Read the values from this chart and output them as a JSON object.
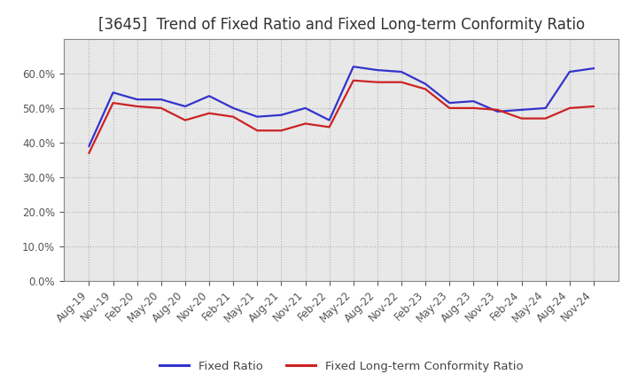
{
  "title": "[3645]  Trend of Fixed Ratio and Fixed Long-term Conformity Ratio",
  "x_labels": [
    "Aug-19",
    "Nov-19",
    "Feb-20",
    "May-20",
    "Aug-20",
    "Nov-20",
    "Feb-21",
    "May-21",
    "Aug-21",
    "Nov-21",
    "Feb-22",
    "May-22",
    "Aug-22",
    "Nov-22",
    "Feb-23",
    "May-23",
    "Aug-23",
    "Nov-23",
    "Feb-24",
    "May-24",
    "Aug-24",
    "Nov-24"
  ],
  "fixed_ratio": [
    39.0,
    54.5,
    52.5,
    52.5,
    50.5,
    53.5,
    50.0,
    47.5,
    48.0,
    50.0,
    46.5,
    62.0,
    61.0,
    60.5,
    57.0,
    51.5,
    52.0,
    49.0,
    49.5,
    50.0,
    60.5,
    61.5
  ],
  "fixed_lt_ratio": [
    37.0,
    51.5,
    50.5,
    50.0,
    46.5,
    48.5,
    47.5,
    43.5,
    43.5,
    45.5,
    44.5,
    58.0,
    57.5,
    57.5,
    55.5,
    50.0,
    50.0,
    49.5,
    47.0,
    47.0,
    50.0,
    50.5
  ],
  "ylim": [
    0,
    70
  ],
  "yticks": [
    0.0,
    10.0,
    20.0,
    30.0,
    40.0,
    50.0,
    60.0
  ],
  "fixed_ratio_color": "#3333CC",
  "fixed_lt_ratio_color": "#CC2222",
  "grid_color": "#aaaaaa",
  "plot_bg_color": "#e8e8e8",
  "background_color": "#ffffff",
  "legend_fixed_ratio": "Fixed Ratio",
  "legend_fixed_lt_ratio": "Fixed Long-term Conformity Ratio",
  "title_fontsize": 12,
  "axis_fontsize": 8.5,
  "legend_fontsize": 9.5,
  "tick_color": "#555555"
}
